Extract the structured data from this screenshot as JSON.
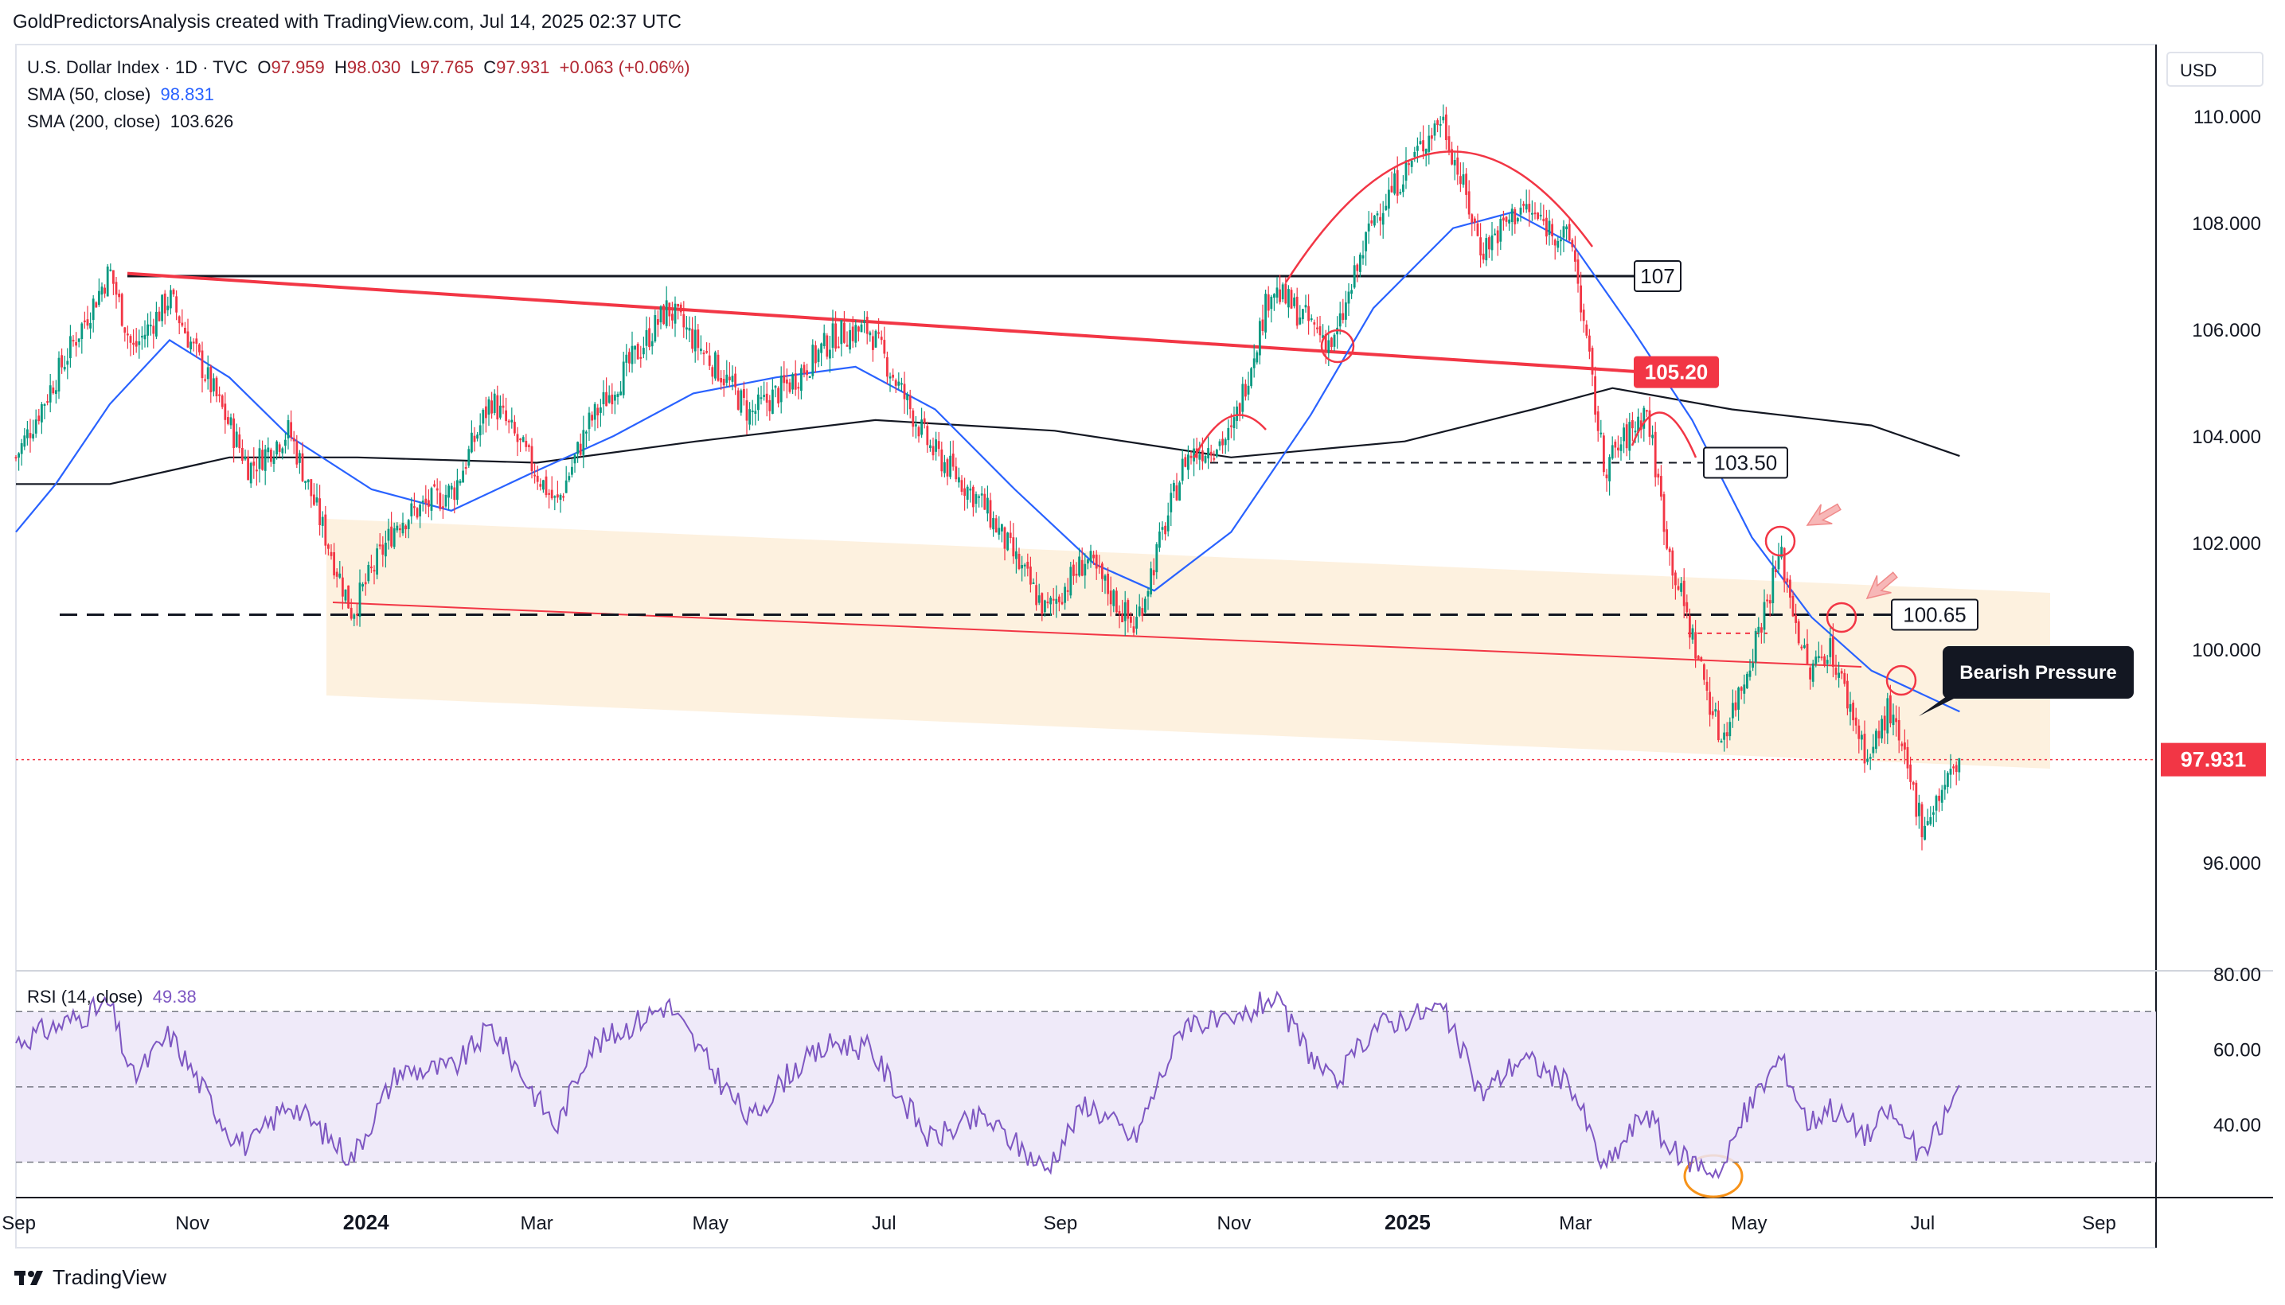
{
  "header": {
    "caption": "GoldPredictorsAnalysis created with TradingView.com, Jul 14, 2025 02:37 UTC"
  },
  "legend": {
    "symbol": "U.S. Dollar Index · 1D · TVC",
    "open_label": "O",
    "open": "97.959",
    "high_label": "H",
    "high": "98.030",
    "low_label": "L",
    "low": "97.765",
    "close_label": "C",
    "close": "97.931",
    "change": "+0.063 (+0.06%)",
    "sma50_label": "SMA (50, close)",
    "sma50_value": "98.831",
    "sma200_label": "SMA (200, close)",
    "sma200_value": "103.626"
  },
  "rsi_legend": {
    "label": "RSI (14, close)",
    "value": "49.38"
  },
  "footer": {
    "brand": "TradingView"
  },
  "colors": {
    "bull": "#089981",
    "bear": "#f23645",
    "sma50": "#2962ff",
    "sma200": "#131722",
    "rsi": "#7e57c2",
    "resistance": "#f23645",
    "channel_fill": "#fdf0dc",
    "price_tag": "#f23645"
  },
  "chart_data": [
    {
      "type": "line",
      "title": "U.S. Dollar Index · 1D · TVC",
      "y_axis_unit": "USD",
      "ylim": [
        94.3,
        111.3
      ],
      "y_ticks": [
        "110.000",
        "108.000",
        "106.000",
        "104.000",
        "102.000",
        "100.000",
        "96.000"
      ],
      "x_ticks": [
        "Sep",
        "Nov",
        "2024",
        "Mar",
        "May",
        "Jul",
        "Sep",
        "Nov",
        "2025",
        "Mar",
        "May",
        "Jul",
        "Sep"
      ],
      "last_price": "97.931",
      "series": [
        {
          "name": "U.S. Dollar Index",
          "points": [
            [
              "2023-08-31",
              103.6
            ],
            [
              "2023-09-14",
              105.1
            ],
            [
              "2023-10-03",
              107.1
            ],
            [
              "2023-10-11",
              105.6
            ],
            [
              "2023-10-24",
              106.6
            ],
            [
              "2023-11-14",
              104.2
            ],
            [
              "2023-11-21",
              103.4
            ],
            [
              "2023-12-05",
              104.1
            ],
            [
              "2023-12-27",
              100.7
            ],
            [
              "2024-01-12",
              102.4
            ],
            [
              "2024-02-01",
              103.0
            ],
            [
              "2024-02-14",
              104.7
            ],
            [
              "2024-03-08",
              102.7
            ],
            [
              "2024-03-19",
              104.2
            ],
            [
              "2024-04-16",
              106.4
            ],
            [
              "2024-05-06",
              105.1
            ],
            [
              "2024-05-15",
              104.4
            ],
            [
              "2024-05-29",
              105.0
            ],
            [
              "2024-06-14",
              105.9
            ],
            [
              "2024-06-26",
              106.0
            ],
            [
              "2024-07-17",
              103.8
            ],
            [
              "2024-08-05",
              102.7
            ],
            [
              "2024-08-27",
              100.7
            ],
            [
              "2024-09-10",
              101.7
            ],
            [
              "2024-09-27",
              100.4
            ],
            [
              "2024-10-15",
              103.6
            ],
            [
              "2024-10-31",
              104.0
            ],
            [
              "2024-11-14",
              106.8
            ],
            [
              "2024-12-06",
              105.7
            ],
            [
              "2024-12-20",
              108.1
            ],
            [
              "2025-01-13",
              110.0
            ],
            [
              "2025-01-27",
              107.5
            ],
            [
              "2025-02-10",
              108.3
            ],
            [
              "2025-02-28",
              107.6
            ],
            [
              "2025-03-11",
              103.4
            ],
            [
              "2025-03-26",
              104.5
            ],
            [
              "2025-04-03",
              101.8
            ],
            [
              "2025-04-21",
              98.3
            ],
            [
              "2025-04-29",
              99.4
            ],
            [
              "2025-05-12",
              101.8
            ],
            [
              "2025-05-22",
              99.5
            ],
            [
              "2025-05-29",
              100.1
            ],
            [
              "2025-06-12",
              97.9
            ],
            [
              "2025-06-19",
              98.9
            ],
            [
              "2025-07-01",
              96.7
            ],
            [
              "2025-07-14",
              97.93
            ]
          ]
        },
        {
          "name": "SMA (50, close)",
          "points": [
            [
              "2023-08-31",
              102.2
            ],
            [
              "2023-09-14",
              103.1
            ],
            [
              "2023-10-03",
              104.6
            ],
            [
              "2023-10-24",
              105.8
            ],
            [
              "2023-11-14",
              105.1
            ],
            [
              "2023-12-05",
              104.0
            ],
            [
              "2024-01-03",
              103.0
            ],
            [
              "2024-01-31",
              102.6
            ],
            [
              "2024-02-28",
              103.3
            ],
            [
              "2024-03-28",
              104.0
            ],
            [
              "2024-04-25",
              104.8
            ],
            [
              "2024-05-24",
              105.1
            ],
            [
              "2024-06-21",
              105.3
            ],
            [
              "2024-07-19",
              104.5
            ],
            [
              "2024-08-16",
              103.0
            ],
            [
              "2024-09-13",
              101.6
            ],
            [
              "2024-10-04",
              101.1
            ],
            [
              "2024-10-31",
              102.2
            ],
            [
              "2024-11-28",
              104.4
            ],
            [
              "2024-12-20",
              106.4
            ],
            [
              "2025-01-17",
              107.9
            ],
            [
              "2025-02-07",
              108.2
            ],
            [
              "2025-02-28",
              107.6
            ],
            [
              "2025-03-21",
              106.0
            ],
            [
              "2025-04-11",
              104.3
            ],
            [
              "2025-05-02",
              102.1
            ],
            [
              "2025-05-23",
              100.6
            ],
            [
              "2025-06-13",
              99.6
            ],
            [
              "2025-07-14",
              98.831
            ]
          ]
        },
        {
          "name": "SMA (200, close)",
          "points": [
            [
              "2023-08-31",
              103.1
            ],
            [
              "2023-10-03",
              103.1
            ],
            [
              "2023-11-14",
              103.6
            ],
            [
              "2023-12-29",
              103.6
            ],
            [
              "2024-03-01",
              103.5
            ],
            [
              "2024-04-26",
              103.9
            ],
            [
              "2024-06-28",
              104.3
            ],
            [
              "2024-08-30",
              104.1
            ],
            [
              "2024-10-31",
              103.6
            ],
            [
              "2024-12-31",
              103.9
            ],
            [
              "2025-02-14",
              104.5
            ],
            [
              "2025-03-14",
              104.9
            ],
            [
              "2025-04-25",
              104.5
            ],
            [
              "2025-06-13",
              104.2
            ],
            [
              "2025-07-14",
              103.626
            ]
          ]
        }
      ],
      "levels": [
        {
          "label": "107",
          "value": 107.0
        },
        {
          "label": "105.20",
          "value": 105.2
        },
        {
          "label": "103.50",
          "value": 103.5
        },
        {
          "label": "100.65",
          "value": 100.65
        }
      ],
      "annotations": [
        "Bearish Pressure"
      ]
    },
    {
      "type": "line",
      "title": "RSI (14, close)",
      "ylim": [
        24,
        83
      ],
      "y_ticks": [
        "80.00",
        "60.00",
        "40.00"
      ],
      "bands": [
        30,
        50,
        70
      ],
      "series": [
        {
          "name": "RSI (14, close)",
          "points": [
            [
              "2023-08-31",
              62
            ],
            [
              "2023-09-14",
              66
            ],
            [
              "2023-10-03",
              72
            ],
            [
              "2023-10-11",
              52
            ],
            [
              "2023-10-24",
              64
            ],
            [
              "2023-11-14",
              38
            ],
            [
              "2023-11-21",
              34
            ],
            [
              "2023-12-05",
              46
            ],
            [
              "2023-12-27",
              31
            ],
            [
              "2024-01-12",
              54
            ],
            [
              "2024-02-01",
              55
            ],
            [
              "2024-02-14",
              66
            ],
            [
              "2024-03-08",
              39
            ],
            [
              "2024-03-19",
              60
            ],
            [
              "2024-04-16",
              72
            ],
            [
              "2024-05-06",
              50
            ],
            [
              "2024-05-15",
              41
            ],
            [
              "2024-05-29",
              54
            ],
            [
              "2024-06-14",
              62
            ],
            [
              "2024-06-26",
              60
            ],
            [
              "2024-07-17",
              36
            ],
            [
              "2024-08-05",
              42
            ],
            [
              "2024-08-27",
              28
            ],
            [
              "2024-09-10",
              46
            ],
            [
              "2024-09-27",
              36
            ],
            [
              "2024-10-15",
              68
            ],
            [
              "2024-10-31",
              66
            ],
            [
              "2024-11-14",
              74
            ],
            [
              "2024-12-06",
              50
            ],
            [
              "2024-12-20",
              66
            ],
            [
              "2025-01-13",
              71
            ],
            [
              "2025-01-27",
              48
            ],
            [
              "2025-02-10",
              58
            ],
            [
              "2025-02-28",
              50
            ],
            [
              "2025-03-11",
              28
            ],
            [
              "2025-03-26",
              44
            ],
            [
              "2025-04-03",
              33
            ],
            [
              "2025-04-21",
              27
            ],
            [
              "2025-04-29",
              42
            ],
            [
              "2025-05-12",
              58
            ],
            [
              "2025-05-22",
              40
            ],
            [
              "2025-05-29",
              45
            ],
            [
              "2025-06-12",
              37
            ],
            [
              "2025-06-19",
              44
            ],
            [
              "2025-07-01",
              31
            ],
            [
              "2025-07-14",
              49.38
            ]
          ]
        }
      ]
    }
  ],
  "axis": {
    "currency": "USD"
  },
  "annotation_labels": {
    "bearish": "Bearish Pressure"
  }
}
